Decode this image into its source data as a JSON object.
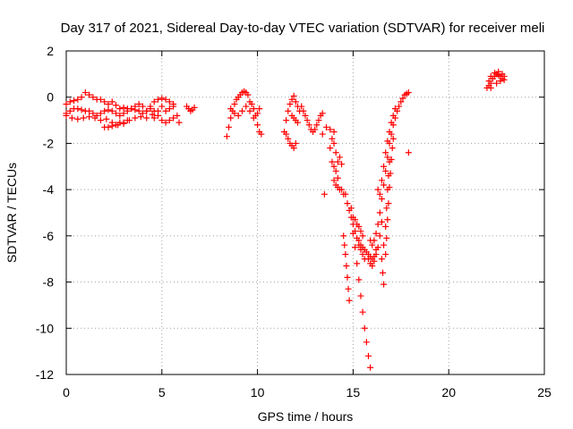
{
  "chart_data": {
    "type": "scatter",
    "title": "Day 317 of 2021, Sidereal Day-to-day VTEC variation (SDTVAR) for receiver meli",
    "xlabel": "GPS time / hours",
    "ylabel": "SDTVAR / TECUs",
    "xlim": [
      0,
      25
    ],
    "ylim": [
      -12,
      2
    ],
    "xticks": [
      0,
      5,
      10,
      15,
      20,
      25
    ],
    "yticks": [
      -12,
      -10,
      -8,
      -6,
      -4,
      -2,
      0,
      2
    ],
    "grid": true,
    "marker": "+",
    "color": "#ff0000",
    "series": [
      {
        "name": "SDTVAR",
        "points": [
          [
            0.0,
            -0.3
          ],
          [
            0.2,
            -0.2
          ],
          [
            0.4,
            -0.15
          ],
          [
            0.6,
            -0.1
          ],
          [
            0.8,
            0.0
          ],
          [
            1.0,
            0.2
          ],
          [
            1.2,
            0.1
          ],
          [
            1.4,
            0.0
          ],
          [
            1.6,
            -0.1
          ],
          [
            1.8,
            -0.1
          ],
          [
            2.0,
            -0.2
          ],
          [
            2.2,
            -0.3
          ],
          [
            2.4,
            -0.2
          ],
          [
            2.6,
            -0.35
          ],
          [
            2.8,
            -0.5
          ],
          [
            3.0,
            -0.45
          ],
          [
            3.2,
            -0.5
          ],
          [
            3.4,
            -0.5
          ],
          [
            3.6,
            -0.4
          ],
          [
            3.8,
            -0.3
          ],
          [
            4.0,
            -0.4
          ],
          [
            4.2,
            -0.6
          ],
          [
            4.4,
            -0.4
          ],
          [
            4.6,
            -0.2
          ],
          [
            4.8,
            -0.1
          ],
          [
            5.0,
            -0.05
          ],
          [
            5.2,
            -0.1
          ],
          [
            5.4,
            -0.2
          ],
          [
            5.6,
            -0.3
          ],
          [
            0.0,
            -0.7
          ],
          [
            0.2,
            -0.6
          ],
          [
            0.4,
            -0.5
          ],
          [
            0.6,
            -0.5
          ],
          [
            0.8,
            -0.55
          ],
          [
            1.0,
            -0.6
          ],
          [
            1.2,
            -0.6
          ],
          [
            1.4,
            -0.7
          ],
          [
            1.6,
            -0.8
          ],
          [
            1.8,
            -0.7
          ],
          [
            2.0,
            -0.6
          ],
          [
            2.2,
            -0.55
          ],
          [
            2.4,
            -0.6
          ],
          [
            2.6,
            -0.7
          ],
          [
            2.8,
            -0.8
          ],
          [
            3.0,
            -0.7
          ],
          [
            3.2,
            -0.6
          ],
          [
            3.4,
            -0.5
          ],
          [
            3.6,
            -0.55
          ],
          [
            3.8,
            -0.6
          ],
          [
            4.0,
            -0.7
          ],
          [
            4.2,
            -0.6
          ],
          [
            4.4,
            -0.5
          ],
          [
            4.6,
            -0.6
          ],
          [
            4.8,
            -0.8
          ],
          [
            0.0,
            -0.8
          ],
          [
            0.3,
            -0.9
          ],
          [
            0.6,
            -0.95
          ],
          [
            0.9,
            -0.9
          ],
          [
            1.2,
            -0.85
          ],
          [
            1.5,
            -0.9
          ],
          [
            1.8,
            -1.0
          ],
          [
            2.1,
            -0.95
          ],
          [
            2.4,
            -1.1
          ],
          [
            2.7,
            -1.2
          ],
          [
            3.0,
            -1.15
          ],
          [
            3.3,
            -1.0
          ],
          [
            3.6,
            -0.9
          ],
          [
            3.9,
            -0.85
          ],
          [
            4.2,
            -0.9
          ],
          [
            4.5,
            -0.75
          ],
          [
            2.0,
            -1.3
          ],
          [
            2.2,
            -1.3
          ],
          [
            2.4,
            -1.25
          ],
          [
            2.6,
            -1.2
          ],
          [
            2.8,
            -1.1
          ],
          [
            3.0,
            -1.1
          ],
          [
            3.2,
            -1.0
          ],
          [
            4.6,
            -0.9
          ],
          [
            4.8,
            -0.6
          ],
          [
            5.0,
            -0.4
          ],
          [
            5.2,
            -0.6
          ],
          [
            5.4,
            -0.5
          ],
          [
            5.6,
            -0.4
          ],
          [
            5.0,
            -1.0
          ],
          [
            5.2,
            -1.1
          ],
          [
            5.4,
            -1.0
          ],
          [
            5.6,
            -0.9
          ],
          [
            5.8,
            -0.8
          ],
          [
            5.9,
            -1.1
          ],
          [
            6.3,
            -0.4
          ],
          [
            6.4,
            -0.5
          ],
          [
            6.5,
            -0.6
          ],
          [
            6.6,
            -0.55
          ],
          [
            6.7,
            -0.45
          ],
          [
            8.4,
            -1.7
          ],
          [
            8.5,
            -1.3
          ],
          [
            8.6,
            -0.9
          ],
          [
            8.7,
            -0.6
          ],
          [
            8.8,
            -0.3
          ],
          [
            8.9,
            -0.1
          ],
          [
            9.0,
            0.0
          ],
          [
            9.1,
            0.1
          ],
          [
            9.2,
            0.2
          ],
          [
            9.3,
            0.25
          ],
          [
            9.4,
            0.2
          ],
          [
            9.5,
            0.1
          ],
          [
            9.6,
            -0.2
          ],
          [
            9.7,
            -0.3
          ],
          [
            9.8,
            -0.5
          ],
          [
            9.9,
            -0.8
          ],
          [
            10.0,
            -1.2
          ],
          [
            10.1,
            -1.5
          ],
          [
            10.2,
            -1.6
          ],
          [
            8.6,
            -0.5
          ],
          [
            8.8,
            -0.7
          ],
          [
            9.0,
            -0.8
          ],
          [
            9.2,
            -0.6
          ],
          [
            9.4,
            -0.4
          ],
          [
            9.6,
            -0.6
          ],
          [
            9.8,
            -0.9
          ],
          [
            10.0,
            -0.7
          ],
          [
            10.1,
            -0.5
          ],
          [
            11.4,
            -1.5
          ],
          [
            11.5,
            -1.0
          ],
          [
            11.6,
            -0.6
          ],
          [
            11.7,
            -0.3
          ],
          [
            11.8,
            -0.1
          ],
          [
            11.9,
            0.05
          ],
          [
            12.0,
            -0.2
          ],
          [
            12.1,
            -0.4
          ],
          [
            12.2,
            -0.6
          ],
          [
            12.3,
            -0.4
          ],
          [
            12.4,
            -0.6
          ],
          [
            12.5,
            -0.8
          ],
          [
            12.6,
            -1.0
          ],
          [
            12.7,
            -1.2
          ],
          [
            12.8,
            -1.4
          ],
          [
            12.9,
            -1.5
          ],
          [
            13.0,
            -1.4
          ],
          [
            13.1,
            -1.2
          ],
          [
            13.2,
            -1.0
          ],
          [
            13.3,
            -0.8
          ],
          [
            13.4,
            -0.7
          ],
          [
            11.5,
            -1.6
          ],
          [
            11.6,
            -1.8
          ],
          [
            11.7,
            -2.0
          ],
          [
            11.8,
            -2.1
          ],
          [
            11.9,
            -2.2
          ],
          [
            12.0,
            -2.0
          ],
          [
            11.8,
            -0.8
          ],
          [
            11.9,
            -0.9
          ],
          [
            12.0,
            -1.0
          ],
          [
            12.1,
            -1.1
          ],
          [
            13.4,
            -1.6
          ],
          [
            13.6,
            -1.3
          ],
          [
            13.8,
            -1.4
          ],
          [
            14.0,
            -1.5
          ],
          [
            13.5,
            -4.2
          ],
          [
            13.8,
            -2.2
          ],
          [
            13.9,
            -2.8
          ],
          [
            14.0,
            -3.0
          ],
          [
            14.1,
            -3.2
          ],
          [
            14.2,
            -3.5
          ],
          [
            13.9,
            -1.8
          ],
          [
            14.0,
            -2.0
          ],
          [
            14.1,
            -2.4
          ],
          [
            14.2,
            -2.8
          ],
          [
            14.3,
            -2.6
          ],
          [
            14.4,
            -2.9
          ],
          [
            14.0,
            -3.6
          ],
          [
            14.1,
            -3.8
          ],
          [
            14.2,
            -3.9
          ],
          [
            14.3,
            -4.0
          ],
          [
            14.4,
            -4.0
          ],
          [
            14.5,
            -4.2
          ],
          [
            14.5,
            -6.0
          ],
          [
            14.55,
            -6.4
          ],
          [
            14.6,
            -6.8
          ],
          [
            14.65,
            -7.3
          ],
          [
            14.7,
            -7.8
          ],
          [
            14.75,
            -8.3
          ],
          [
            14.8,
            -8.8
          ],
          [
            14.6,
            -4.2
          ],
          [
            14.7,
            -4.6
          ],
          [
            14.8,
            -4.9
          ],
          [
            14.9,
            -5.2
          ],
          [
            15.0,
            -5.5
          ],
          [
            15.1,
            -5.8
          ],
          [
            15.2,
            -6.1
          ],
          [
            15.3,
            -6.4
          ],
          [
            15.4,
            -6.6
          ],
          [
            15.5,
            -6.8
          ],
          [
            15.6,
            -7.0
          ],
          [
            14.9,
            -4.8
          ],
          [
            15.0,
            -5.2
          ],
          [
            15.1,
            -5.3
          ],
          [
            15.2,
            -5.5
          ],
          [
            15.3,
            -5.6
          ],
          [
            15.4,
            -5.8
          ],
          [
            15.5,
            -6.0
          ],
          [
            15.0,
            -5.9
          ],
          [
            15.1,
            -6.5
          ],
          [
            15.2,
            -7.2
          ],
          [
            15.3,
            -7.9
          ],
          [
            15.4,
            -8.6
          ],
          [
            15.5,
            -9.3
          ],
          [
            15.6,
            -10.0
          ],
          [
            15.7,
            -10.6
          ],
          [
            15.8,
            -11.2
          ],
          [
            15.9,
            -11.7
          ],
          [
            15.3,
            -6.2
          ],
          [
            15.4,
            -6.4
          ],
          [
            15.5,
            -6.5
          ],
          [
            15.6,
            -6.6
          ],
          [
            15.7,
            -6.7
          ],
          [
            15.8,
            -6.8
          ],
          [
            15.9,
            -6.9
          ],
          [
            16.0,
            -7.0
          ],
          [
            16.1,
            -6.9
          ],
          [
            16.2,
            -6.6
          ],
          [
            15.8,
            -7.0
          ],
          [
            15.9,
            -7.2
          ],
          [
            16.0,
            -7.3
          ],
          [
            16.1,
            -7.1
          ],
          [
            16.2,
            -6.8
          ],
          [
            16.3,
            -6.5
          ],
          [
            16.4,
            -6.0
          ],
          [
            16.5,
            -5.4
          ],
          [
            15.9,
            -6.2
          ],
          [
            16.0,
            -6.4
          ],
          [
            16.1,
            -6.2
          ],
          [
            16.2,
            -5.9
          ],
          [
            16.3,
            -5.5
          ],
          [
            16.4,
            -5.0
          ],
          [
            16.5,
            -4.4
          ],
          [
            16.6,
            -3.8
          ],
          [
            16.7,
            -3.2
          ],
          [
            16.8,
            -2.6
          ],
          [
            16.9,
            -2.0
          ],
          [
            17.0,
            -1.6
          ],
          [
            17.1,
            -1.2
          ],
          [
            17.2,
            -0.9
          ],
          [
            17.3,
            -0.6
          ],
          [
            17.4,
            -0.4
          ],
          [
            17.5,
            -0.2
          ],
          [
            17.6,
            -0.05
          ],
          [
            17.7,
            0.1
          ],
          [
            17.8,
            0.15
          ],
          [
            17.9,
            0.2
          ],
          [
            16.3,
            -4.0
          ],
          [
            16.4,
            -4.2
          ],
          [
            16.5,
            -3.6
          ],
          [
            16.6,
            -3.0
          ],
          [
            16.7,
            -2.4
          ],
          [
            16.8,
            -1.9
          ],
          [
            16.9,
            -1.5
          ],
          [
            17.0,
            -1.1
          ],
          [
            17.1,
            -0.8
          ],
          [
            17.2,
            -0.5
          ],
          [
            16.5,
            -7.0
          ],
          [
            16.55,
            -7.6
          ],
          [
            16.6,
            -8.1
          ],
          [
            16.6,
            -6.4
          ],
          [
            16.7,
            -5.6
          ],
          [
            16.75,
            -4.8
          ],
          [
            16.8,
            -4.0
          ],
          [
            16.85,
            -3.4
          ],
          [
            16.9,
            -2.8
          ],
          [
            16.7,
            -6.8
          ],
          [
            16.75,
            -6.1
          ],
          [
            16.8,
            -5.3
          ],
          [
            16.85,
            -4.6
          ],
          [
            16.9,
            -3.9
          ],
          [
            16.95,
            -3.3
          ],
          [
            17.0,
            -2.7
          ],
          [
            17.05,
            -2.2
          ],
          [
            17.1,
            -1.8
          ],
          [
            17.9,
            -2.4
          ],
          [
            22.0,
            0.4
          ],
          [
            22.1,
            0.5
          ],
          [
            22.2,
            0.6
          ],
          [
            22.3,
            0.8
          ],
          [
            22.4,
            0.9
          ],
          [
            22.5,
            1.0
          ],
          [
            22.6,
            0.95
          ],
          [
            22.7,
            0.9
          ],
          [
            22.8,
            0.8
          ],
          [
            22.9,
            0.75
          ],
          [
            22.1,
            0.7
          ],
          [
            22.2,
            0.9
          ],
          [
            22.4,
            1.05
          ],
          [
            22.6,
            1.1
          ],
          [
            22.8,
            1.0
          ],
          [
            22.9,
            0.9
          ],
          [
            22.2,
            0.4
          ],
          [
            22.5,
            0.6
          ],
          [
            22.7,
            0.7
          ]
        ]
      }
    ]
  }
}
